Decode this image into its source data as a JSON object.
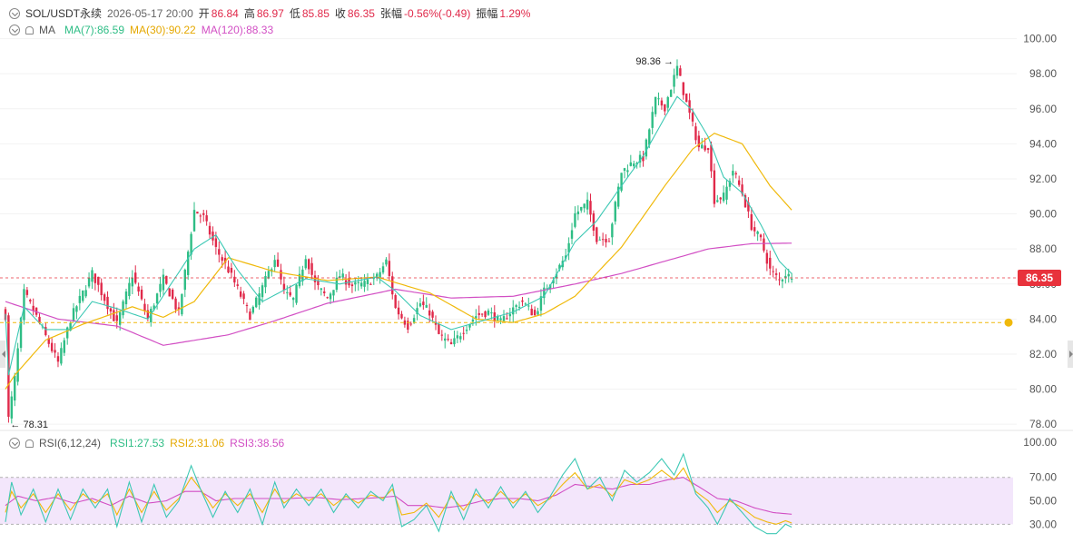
{
  "header": {
    "symbol": "SOL/USDT永续",
    "datetime": "2026-05-17 20:00",
    "open_label": "开",
    "open": "86.84",
    "high_label": "高",
    "high": "86.97",
    "low_label": "低",
    "low": "85.85",
    "close_label": "收",
    "close": "86.35",
    "change_label": "张幅",
    "change": "-0.56%(-0.49)",
    "amp_label": "振幅",
    "amp": "1.29%"
  },
  "ma_legend": {
    "label": "MA",
    "ma7": "MA(7):86.59",
    "ma30": "MA(30):90.22",
    "ma120": "MA(120):88.33"
  },
  "rsi_legend": {
    "label": "RSI(6,12,24)",
    "rsi1": "RSI1:27.53",
    "rsi2": "RSI2:31.06",
    "rsi3": "RSI3:38.56"
  },
  "colors": {
    "up": "#2ebd85",
    "down": "#e0294a",
    "ma7": "#3cc8b4",
    "ma30": "#f0b90b",
    "ma120": "#d24fc4",
    "rsi1": "#3cc8b4",
    "rsi2": "#f0b90b",
    "rsi3": "#d24fc4",
    "price_tag": "#e8323c",
    "rsi_band": "#f3e6fb"
  },
  "chart_data": [
    {
      "type": "candlestick",
      "yticks": [
        "100.00",
        "98.00",
        "96.00",
        "94.00",
        "92.00",
        "90.00",
        "88.00",
        "86.00",
        "84.00",
        "82.00",
        "80.00",
        "78.00"
      ],
      "ylim": [
        77.8,
        100.6
      ],
      "current_price_label": "86.35",
      "current_price": 86.35,
      "alert_level": 83.8,
      "high_marker": {
        "label": "98.36",
        "value": 98.36
      },
      "low_marker": {
        "label": "78.31",
        "value": 78.31
      },
      "anchors": [
        [
          0,
          84.2
        ],
        [
          1,
          78.31
        ],
        [
          3,
          80.6
        ],
        [
          6,
          85.5
        ],
        [
          9,
          84.5
        ],
        [
          13,
          83.0
        ],
        [
          17,
          81.5
        ],
        [
          21,
          84.0
        ],
        [
          25,
          85.5
        ],
        [
          28,
          86.6
        ],
        [
          33,
          84.8
        ],
        [
          36,
          83.7
        ],
        [
          41,
          86.5
        ],
        [
          46,
          84.0
        ],
        [
          51,
          86.3
        ],
        [
          56,
          84.3
        ],
        [
          61,
          90.2
        ],
        [
          64,
          89.8
        ],
        [
          68,
          88.0
        ],
        [
          72,
          86.8
        ],
        [
          75,
          85.7
        ],
        [
          79,
          84.2
        ],
        [
          83,
          85.8
        ],
        [
          87,
          87.5
        ],
        [
          90,
          85.5
        ],
        [
          93,
          85.1
        ],
        [
          97,
          87.6
        ],
        [
          100,
          86.0
        ],
        [
          104,
          85.2
        ],
        [
          108,
          86.5
        ],
        [
          112,
          85.9
        ],
        [
          116,
          86.0
        ],
        [
          120,
          86.4
        ],
        [
          123,
          87.3
        ],
        [
          126,
          84.6
        ],
        [
          130,
          83.6
        ],
        [
          134,
          84.9
        ],
        [
          137,
          84.4
        ],
        [
          140,
          83.1
        ],
        [
          144,
          82.5
        ],
        [
          148,
          83.4
        ],
        [
          152,
          84.2
        ],
        [
          156,
          84.4
        ],
        [
          160,
          83.8
        ],
        [
          164,
          84.6
        ],
        [
          167,
          85.0
        ],
        [
          171,
          84.2
        ],
        [
          174,
          85.6
        ],
        [
          178,
          86.7
        ],
        [
          181,
          87.6
        ],
        [
          184,
          90.0
        ],
        [
          188,
          90.6
        ],
        [
          191,
          88.6
        ],
        [
          195,
          88.6
        ],
        [
          199,
          92.4
        ],
        [
          203,
          93.0
        ],
        [
          206,
          93.2
        ],
        [
          210,
          96.5
        ],
        [
          213,
          96.1
        ],
        [
          217,
          98.36
        ],
        [
          220,
          96.3
        ],
        [
          224,
          93.8
        ],
        [
          227,
          93.9
        ],
        [
          229,
          90.8
        ],
        [
          232,
          91.0
        ],
        [
          235,
          92.5
        ],
        [
          238,
          91.2
        ],
        [
          241,
          89.3
        ],
        [
          244,
          88.5
        ],
        [
          247,
          86.8
        ],
        [
          250,
          86.2
        ],
        [
          252,
          86.6
        ],
        [
          254,
          86.3
        ]
      ],
      "ma_anchors": {
        "ma7": [
          [
            0,
            84.3
          ],
          [
            1,
            80.8
          ],
          [
            6,
            84.7
          ],
          [
            13,
            83.4
          ],
          [
            21,
            83.4
          ],
          [
            28,
            85.0
          ],
          [
            36,
            84.6
          ],
          [
            46,
            84.0
          ],
          [
            61,
            88.0
          ],
          [
            68,
            88.8
          ],
          [
            75,
            86.8
          ],
          [
            83,
            85.0
          ],
          [
            97,
            86.3
          ],
          [
            108,
            86.0
          ],
          [
            120,
            86.4
          ],
          [
            126,
            85.6
          ],
          [
            134,
            84.2
          ],
          [
            144,
            83.4
          ],
          [
            152,
            83.8
          ],
          [
            164,
            84.4
          ],
          [
            174,
            85.3
          ],
          [
            184,
            88.4
          ],
          [
            191,
            89.6
          ],
          [
            199,
            91.6
          ],
          [
            206,
            93.3
          ],
          [
            213,
            95.5
          ],
          [
            217,
            96.7
          ],
          [
            222,
            95.9
          ],
          [
            227,
            94.4
          ],
          [
            232,
            92.1
          ],
          [
            238,
            91.2
          ],
          [
            244,
            89.4
          ],
          [
            250,
            87.3
          ],
          [
            254,
            86.59
          ]
        ],
        "ma30": [
          [
            0,
            80.0
          ],
          [
            3,
            80.8
          ],
          [
            13,
            82.8
          ],
          [
            25,
            83.7
          ],
          [
            41,
            84.7
          ],
          [
            51,
            84.1
          ],
          [
            61,
            85.0
          ],
          [
            72,
            87.5
          ],
          [
            87,
            86.7
          ],
          [
            104,
            86.2
          ],
          [
            120,
            86.4
          ],
          [
            137,
            85.5
          ],
          [
            152,
            84.0
          ],
          [
            164,
            83.8
          ],
          [
            174,
            84.3
          ],
          [
            184,
            85.3
          ],
          [
            199,
            88.1
          ],
          [
            213,
            91.6
          ],
          [
            222,
            93.7
          ],
          [
            229,
            94.6
          ],
          [
            238,
            94.0
          ],
          [
            247,
            91.6
          ],
          [
            254,
            90.22
          ]
        ],
        "ma120": [
          [
            0,
            85.0
          ],
          [
            17,
            84.0
          ],
          [
            36,
            83.6
          ],
          [
            51,
            82.5
          ],
          [
            72,
            83.1
          ],
          [
            87,
            83.9
          ],
          [
            104,
            84.9
          ],
          [
            126,
            85.7
          ],
          [
            144,
            85.2
          ],
          [
            164,
            85.3
          ],
          [
            184,
            86.0
          ],
          [
            199,
            86.6
          ],
          [
            213,
            87.3
          ],
          [
            227,
            88.0
          ],
          [
            241,
            88.3
          ],
          [
            254,
            88.33
          ]
        ]
      }
    },
    {
      "type": "line",
      "yticks": [
        "100.00",
        "70.00",
        "50.00",
        "30.00"
      ],
      "ylim": [
        14,
        100
      ],
      "overbought": 70,
      "oversold": 30,
      "rsi1_anchors": [
        [
          0,
          32
        ],
        [
          2,
          66
        ],
        [
          5,
          38
        ],
        [
          9,
          60
        ],
        [
          13,
          32
        ],
        [
          17,
          60
        ],
        [
          21,
          34
        ],
        [
          25,
          60
        ],
        [
          29,
          44
        ],
        [
          33,
          60
        ],
        [
          36,
          28
        ],
        [
          40,
          66
        ],
        [
          44,
          32
        ],
        [
          48,
          64
        ],
        [
          52,
          36
        ],
        [
          56,
          50
        ],
        [
          60,
          80
        ],
        [
          63,
          60
        ],
        [
          67,
          36
        ],
        [
          71,
          58
        ],
        [
          75,
          40
        ],
        [
          79,
          60
        ],
        [
          83,
          30
        ],
        [
          87,
          66
        ],
        [
          90,
          44
        ],
        [
          94,
          60
        ],
        [
          98,
          46
        ],
        [
          102,
          60
        ],
        [
          106,
          40
        ],
        [
          110,
          56
        ],
        [
          114,
          44
        ],
        [
          118,
          58
        ],
        [
          122,
          50
        ],
        [
          125,
          64
        ],
        [
          128,
          28
        ],
        [
          132,
          34
        ],
        [
          136,
          46
        ],
        [
          140,
          24
        ],
        [
          144,
          58
        ],
        [
          148,
          34
        ],
        [
          152,
          60
        ],
        [
          156,
          44
        ],
        [
          160,
          62
        ],
        [
          164,
          44
        ],
        [
          168,
          58
        ],
        [
          172,
          40
        ],
        [
          176,
          54
        ],
        [
          180,
          72
        ],
        [
          184,
          86
        ],
        [
          188,
          60
        ],
        [
          192,
          70
        ],
        [
          196,
          50
        ],
        [
          200,
          76
        ],
        [
          204,
          66
        ],
        [
          208,
          74
        ],
        [
          212,
          86
        ],
        [
          216,
          72
        ],
        [
          219,
          90
        ],
        [
          223,
          56
        ],
        [
          227,
          44
        ],
        [
          230,
          30
        ],
        [
          234,
          52
        ],
        [
          238,
          40
        ],
        [
          242,
          28
        ],
        [
          246,
          22
        ],
        [
          249,
          22
        ],
        [
          252,
          30
        ],
        [
          254,
          27.53
        ]
      ],
      "rsi2_anchors": [
        [
          0,
          40
        ],
        [
          2,
          58
        ],
        [
          5,
          44
        ],
        [
          9,
          56
        ],
        [
          13,
          40
        ],
        [
          17,
          56
        ],
        [
          21,
          42
        ],
        [
          25,
          56
        ],
        [
          29,
          48
        ],
        [
          33,
          56
        ],
        [
          36,
          38
        ],
        [
          40,
          60
        ],
        [
          44,
          40
        ],
        [
          48,
          58
        ],
        [
          52,
          42
        ],
        [
          56,
          52
        ],
        [
          60,
          70
        ],
        [
          63,
          60
        ],
        [
          67,
          44
        ],
        [
          71,
          56
        ],
        [
          75,
          46
        ],
        [
          79,
          56
        ],
        [
          83,
          40
        ],
        [
          87,
          60
        ],
        [
          90,
          48
        ],
        [
          94,
          56
        ],
        [
          98,
          50
        ],
        [
          102,
          56
        ],
        [
          106,
          46
        ],
        [
          110,
          54
        ],
        [
          114,
          48
        ],
        [
          118,
          55
        ],
        [
          122,
          52
        ],
        [
          125,
          60
        ],
        [
          128,
          38
        ],
        [
          132,
          40
        ],
        [
          136,
          48
        ],
        [
          140,
          36
        ],
        [
          144,
          54
        ],
        [
          148,
          42
        ],
        [
          152,
          56
        ],
        [
          156,
          48
        ],
        [
          160,
          58
        ],
        [
          164,
          48
        ],
        [
          168,
          56
        ],
        [
          172,
          46
        ],
        [
          176,
          52
        ],
        [
          180,
          64
        ],
        [
          184,
          74
        ],
        [
          188,
          60
        ],
        [
          192,
          64
        ],
        [
          196,
          54
        ],
        [
          200,
          68
        ],
        [
          204,
          64
        ],
        [
          208,
          68
        ],
        [
          212,
          76
        ],
        [
          216,
          68
        ],
        [
          219,
          78
        ],
        [
          223,
          58
        ],
        [
          227,
          50
        ],
        [
          230,
          40
        ],
        [
          234,
          50
        ],
        [
          238,
          44
        ],
        [
          242,
          36
        ],
        [
          246,
          32
        ],
        [
          249,
          30
        ],
        [
          252,
          33
        ],
        [
          254,
          31.06
        ]
      ],
      "rsi3_anchors": [
        [
          0,
          46
        ],
        [
          4,
          54
        ],
        [
          10,
          50
        ],
        [
          16,
          53
        ],
        [
          22,
          48
        ],
        [
          28,
          52
        ],
        [
          34,
          46
        ],
        [
          40,
          54
        ],
        [
          46,
          48
        ],
        [
          52,
          50
        ],
        [
          58,
          58
        ],
        [
          63,
          58
        ],
        [
          68,
          50
        ],
        [
          74,
          52
        ],
        [
          80,
          52
        ],
        [
          86,
          52
        ],
        [
          92,
          52
        ],
        [
          100,
          53
        ],
        [
          108,
          51
        ],
        [
          116,
          52
        ],
        [
          122,
          53
        ],
        [
          126,
          54
        ],
        [
          130,
          46
        ],
        [
          136,
          46
        ],
        [
          142,
          44
        ],
        [
          148,
          46
        ],
        [
          154,
          50
        ],
        [
          160,
          52
        ],
        [
          166,
          52
        ],
        [
          172,
          50
        ],
        [
          178,
          55
        ],
        [
          184,
          64
        ],
        [
          190,
          62
        ],
        [
          196,
          60
        ],
        [
          202,
          64
        ],
        [
          208,
          64
        ],
        [
          214,
          68
        ],
        [
          219,
          70
        ],
        [
          224,
          62
        ],
        [
          230,
          52
        ],
        [
          236,
          50
        ],
        [
          242,
          44
        ],
        [
          248,
          40
        ],
        [
          252,
          39
        ],
        [
          254,
          38.56
        ]
      ]
    }
  ]
}
